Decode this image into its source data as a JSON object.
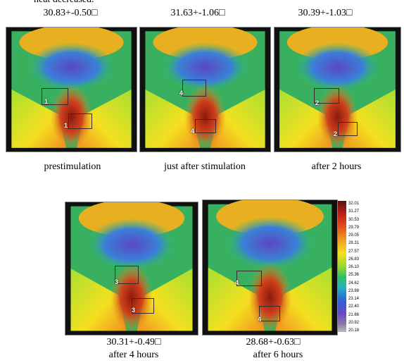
{
  "header": {
    "text": "heat decreased."
  },
  "panels": [
    {
      "temperature": "30.83+-0.50□",
      "caption": "prestimulation",
      "markers": [
        "1",
        "1"
      ]
    },
    {
      "temperature": "31.63+-1.06□",
      "caption": "just after stimulation",
      "markers": [
        "4",
        "4"
      ]
    },
    {
      "temperature": "30.39+-1.03□",
      "caption": "after 2 hours",
      "markers": [
        "2",
        "2"
      ]
    },
    {
      "temperature": "30.31+-0.49□",
      "caption": "after 4 hours",
      "markers": [
        "3",
        "3"
      ]
    },
    {
      "temperature": "28.68+-0.63□",
      "caption": "after 6 hours",
      "markers": [
        "4",
        "4"
      ]
    }
  ],
  "color_scale": {
    "labels": [
      "32.01",
      "31.27",
      "30.53",
      "29.79",
      "29.05",
      "28.31",
      "27.57",
      "26.83",
      "26.10",
      "25.36",
      "24.62",
      "23.88",
      "23.14",
      "22.40",
      "21.66",
      "20.92",
      "20.18"
    ]
  }
}
